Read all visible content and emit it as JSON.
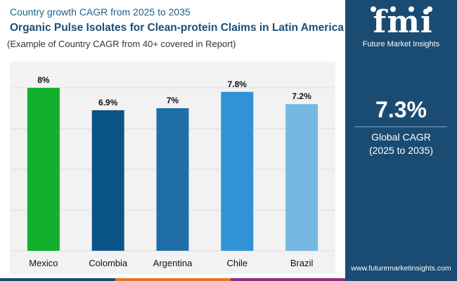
{
  "header": {
    "subtitle": "Country growth CAGR from 2025 to 2035",
    "title": "Organic Pulse Isolates for Clean-protein Claims in Latin America",
    "note": "(Example of Country CAGR from 40+ covered in Report)"
  },
  "chart_data": {
    "type": "bar",
    "categories": [
      "Mexico",
      "Colombia",
      "Argentina",
      "Chile",
      "Brazil"
    ],
    "values": [
      8.0,
      6.9,
      7.0,
      7.8,
      7.2
    ],
    "labels": [
      "8%",
      "6.9%",
      "7%",
      "7.8%",
      "7.2%"
    ],
    "colors": [
      "#12b02d",
      "#0b5488",
      "#1e6fa8",
      "#2f93d6",
      "#77b8e2"
    ],
    "ylim": [
      0,
      8
    ],
    "grid": true,
    "title": "Organic Pulse Isolates for Clean-protein Claims in Latin America",
    "xlabel": "",
    "ylabel": ""
  },
  "summary": {
    "global_cagr": "7.3%",
    "label": "Global CAGR",
    "period": "(2025 to 2035)"
  },
  "brand": {
    "logo_letters": "fmi",
    "name": "Future Market Insights",
    "website": "www.futuremarketinsights.com"
  },
  "colors": {
    "panel": "#1a4b72",
    "title": "#1a4f7a",
    "strip": [
      "#1a4b72",
      "#e8732a",
      "#8c2f7e"
    ]
  }
}
